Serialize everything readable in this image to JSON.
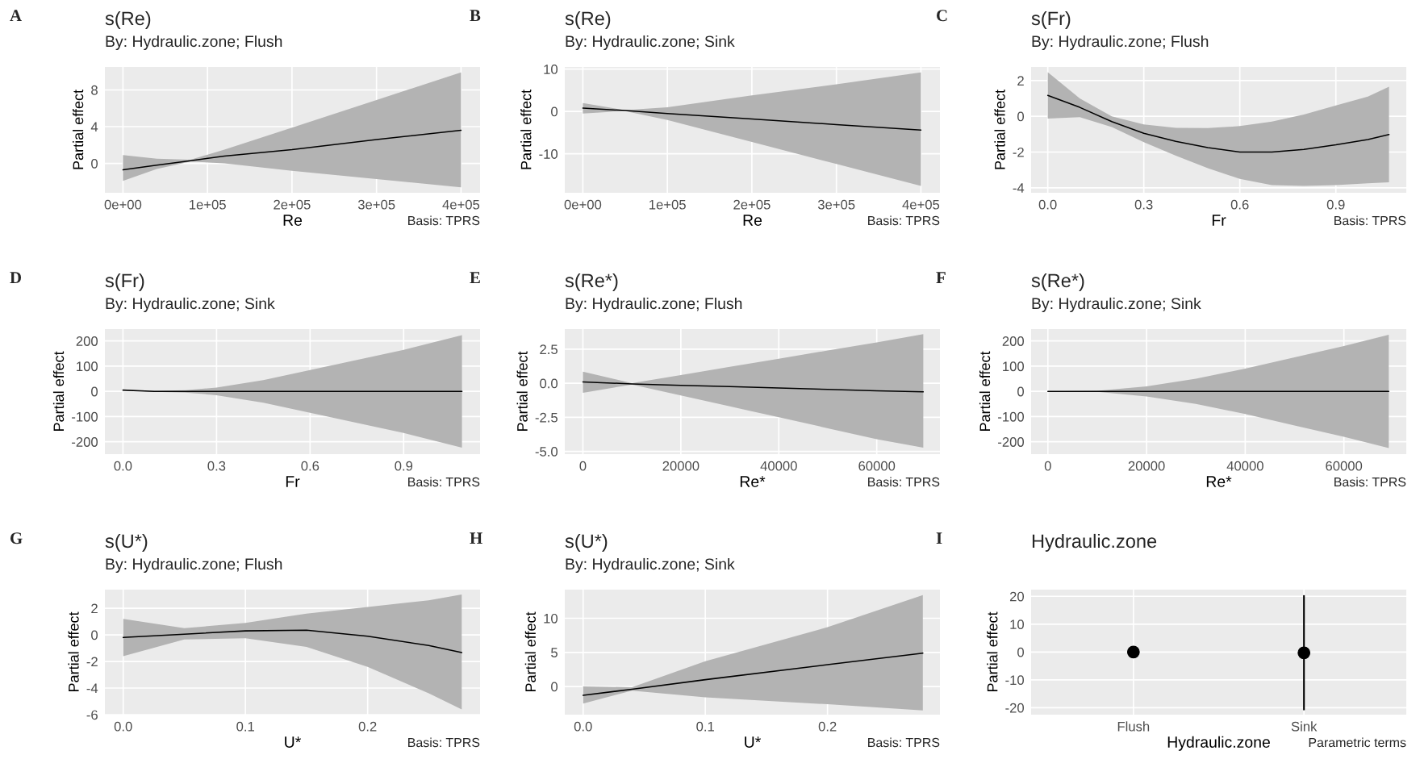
{
  "chart_data": [
    {
      "type": "line",
      "title": "s(Re)",
      "subtitle": "By: Hydraulic.zone; Flush",
      "xlabel": "Re",
      "ylabel": "Partial effect",
      "annotations": [
        "A",
        "Basis: TPRS"
      ],
      "grid": true,
      "x": [
        0,
        40000,
        80000,
        120000,
        200000,
        300000,
        400000
      ],
      "series": [
        {
          "color": "#000000",
          "values": [
            -0.7,
            -0.2,
            0.3,
            0.8,
            1.5,
            2.6,
            3.6
          ],
          "lower": [
            -1.9,
            -0.6,
            0.2,
            0.0,
            -0.8,
            -1.7,
            -2.6
          ],
          "upper": [
            0.9,
            0.5,
            0.4,
            1.5,
            3.9,
            6.9,
            9.9
          ]
        }
      ],
      "xlim": [
        -21400,
        422500
      ],
      "ylim": [
        -3.2,
        10.5
      ],
      "xticks": [
        {
          "value": 0,
          "label": "0e+00"
        },
        {
          "value": 100000,
          "label": "1e+05"
        },
        {
          "value": 200000,
          "label": "2e+05"
        },
        {
          "value": 300000,
          "label": "3e+05"
        },
        {
          "value": 400000,
          "label": "4e+05"
        }
      ],
      "yticks": [
        0,
        4,
        8
      ]
    },
    {
      "type": "line",
      "title": "s(Re)",
      "subtitle": "By: Hydraulic.zone; Sink",
      "xlabel": "Re",
      "ylabel": "Partial effect",
      "annotations": [
        "B",
        "Basis: TPRS"
      ],
      "grid": true,
      "x": [
        0,
        50000,
        100000,
        200000,
        300000,
        400000
      ],
      "series": [
        {
          "color": "#000000",
          "values": [
            0.8,
            0.2,
            -0.5,
            -1.8,
            -3.1,
            -4.4
          ],
          "lower": [
            -0.5,
            0.1,
            -2.0,
            -7.2,
            -12.4,
            -17.6
          ],
          "upper": [
            2.0,
            0.3,
            1.0,
            3.8,
            6.4,
            9.2
          ]
        }
      ],
      "xlim": [
        -21400,
        422500
      ],
      "ylim": [
        -19.2,
        10.5
      ],
      "xticks": [
        {
          "value": 0,
          "label": "0e+00"
        },
        {
          "value": 100000,
          "label": "1e+05"
        },
        {
          "value": 200000,
          "label": "2e+05"
        },
        {
          "value": 300000,
          "label": "3e+05"
        },
        {
          "value": 400000,
          "label": "4e+05"
        }
      ],
      "yticks": [
        -10,
        0,
        10
      ]
    },
    {
      "type": "line",
      "title": "s(Fr)",
      "subtitle": "By: Hydraulic.zone; Flush",
      "xlabel": "Fr",
      "ylabel": "Partial effect",
      "annotations": [
        "C",
        "Basis: TPRS"
      ],
      "grid": true,
      "x": [
        0,
        0.1,
        0.2,
        0.3,
        0.4,
        0.5,
        0.6,
        0.7,
        0.8,
        0.9,
        1.0,
        1.066
      ],
      "series": [
        {
          "color": "#000000",
          "values": [
            1.17,
            0.5,
            -0.3,
            -0.95,
            -1.4,
            -1.75,
            -2.0,
            -2.0,
            -1.85,
            -1.6,
            -1.3,
            -1.02
          ],
          "lower": [
            -0.13,
            -0.05,
            -0.6,
            -1.45,
            -2.2,
            -2.9,
            -3.5,
            -3.85,
            -3.9,
            -3.85,
            -3.75,
            -3.69
          ],
          "upper": [
            2.47,
            1.0,
            0.0,
            -0.45,
            -0.65,
            -0.66,
            -0.55,
            -0.3,
            0.1,
            0.6,
            1.1,
            1.65
          ]
        }
      ],
      "xlim": [
        -0.052,
        1.12
      ],
      "ylim": [
        -4.28,
        2.76
      ],
      "xticks": [
        {
          "value": 0,
          "label": "0.0"
        },
        0.3,
        0.6,
        0.9
      ],
      "yticks": [
        -4,
        -2,
        0,
        2
      ]
    },
    {
      "type": "line",
      "title": "s(Fr)",
      "subtitle": "By: Hydraulic.zone; Sink",
      "xlabel": "Fr",
      "ylabel": "Partial effect",
      "annotations": [
        "D",
        "Basis: TPRS"
      ],
      "grid": true,
      "x": [
        0,
        0.1,
        0.2,
        0.3,
        0.45,
        0.6,
        0.75,
        0.9,
        1.087
      ],
      "series": [
        {
          "color": "#000000",
          "values": [
            5,
            0,
            0,
            0,
            0,
            0,
            0,
            0,
            0
          ],
          "lower": [
            5,
            -2,
            -5,
            -15,
            -45,
            -85,
            -125,
            -165,
            -223
          ],
          "upper": [
            5,
            2,
            5,
            15,
            45,
            85,
            125,
            165,
            223
          ]
        }
      ],
      "xlim": [
        -0.058,
        1.145
      ],
      "ylim": [
        -249,
        247
      ],
      "xticks": [
        {
          "value": 0,
          "label": "0.0"
        },
        0.3,
        0.6,
        0.9
      ],
      "yticks": [
        -200,
        -100,
        0,
        100,
        200
      ]
    },
    {
      "type": "line",
      "title": "s(Re*)",
      "subtitle": "By: Hydraulic.zone; Flush",
      "xlabel": "Re*",
      "ylabel": "Partial effect",
      "annotations": [
        "E",
        "Basis: TPRS"
      ],
      "grid": true,
      "x": [
        0,
        10000,
        20000,
        30000,
        40000,
        50000,
        60000,
        69500
      ],
      "series": [
        {
          "color": "#000000",
          "values": [
            0.1,
            -0.05,
            -0.15,
            -0.25,
            -0.35,
            -0.45,
            -0.55,
            -0.63
          ],
          "lower": [
            -0.7,
            -0.1,
            -0.9,
            -1.7,
            -2.5,
            -3.3,
            -4.1,
            -4.73
          ],
          "upper": [
            0.85,
            0.0,
            0.6,
            1.2,
            1.8,
            2.4,
            3.0,
            3.6
          ]
        }
      ],
      "xlim": [
        -3700,
        72900
      ],
      "ylim": [
        -5.2,
        3.97
      ],
      "xticks": [
        0,
        20000,
        40000,
        60000
      ],
      "yticks": [
        {
          "value": -5,
          "label": "-5.0"
        },
        -2.5,
        {
          "value": 0,
          "label": "0.0"
        },
        2.5
      ]
    },
    {
      "type": "line",
      "title": "s(Re*)",
      "subtitle": "By: Hydraulic.zone; Sink",
      "xlabel": "Re*",
      "ylabel": "Partial effect",
      "annotations": [
        "F",
        "Basis: TPRS"
      ],
      "grid": true,
      "x": [
        0,
        10000,
        20000,
        30000,
        40000,
        50000,
        60000,
        69100
      ],
      "series": [
        {
          "color": "#000000",
          "values": [
            0,
            0,
            0,
            0,
            0,
            0,
            0,
            0
          ],
          "lower": [
            0,
            -2,
            -20,
            -50,
            -90,
            -135,
            -180,
            -225
          ],
          "upper": [
            0,
            2,
            20,
            50,
            90,
            135,
            180,
            225
          ]
        }
      ],
      "xlim": [
        -3400,
        72650
      ],
      "ylim": [
        -249,
        247
      ],
      "xticks": [
        0,
        20000,
        40000,
        60000
      ],
      "yticks": [
        -200,
        -100,
        0,
        100,
        200
      ]
    },
    {
      "type": "line",
      "title": "s(U*)",
      "subtitle": "By: Hydraulic.zone; Flush",
      "xlabel": "U*",
      "ylabel": "Partial effect",
      "annotations": [
        "G",
        "Basis: TPRS"
      ],
      "grid": true,
      "x": [
        0,
        0.05,
        0.1,
        0.15,
        0.2,
        0.25,
        0.277
      ],
      "series": [
        {
          "color": "#000000",
          "values": [
            -0.2,
            0.05,
            0.3,
            0.35,
            -0.1,
            -0.8,
            -1.33
          ],
          "lower": [
            -1.6,
            -0.35,
            -0.25,
            -0.9,
            -2.4,
            -4.4,
            -5.6
          ],
          "upper": [
            1.2,
            0.5,
            0.9,
            1.6,
            2.1,
            2.6,
            3.04
          ]
        }
      ],
      "xlim": [
        -0.015,
        0.292
      ],
      "ylim": [
        -6,
        3.4
      ],
      "xticks": [
        {
          "value": 0,
          "label": "0.0"
        },
        0.1,
        0.2
      ],
      "yticks": [
        -6,
        -4,
        -2,
        0,
        2
      ]
    },
    {
      "type": "line",
      "title": "s(U*)",
      "subtitle": "By: Hydraulic.zone; Sink",
      "xlabel": "U*",
      "ylabel": "Partial effect",
      "annotations": [
        "H",
        "Basis: TPRS"
      ],
      "grid": true,
      "x": [
        0,
        0.04,
        0.1,
        0.2,
        0.278
      ],
      "series": [
        {
          "color": "#000000",
          "values": [
            -1.3,
            -0.4,
            1.0,
            3.2,
            4.9
          ],
          "lower": [
            -2.5,
            -0.6,
            -1.6,
            -2.6,
            -3.5
          ],
          "upper": [
            0.0,
            -0.1,
            3.7,
            8.7,
            13.4
          ]
        }
      ],
      "xlim": [
        -0.015,
        0.292
      ],
      "ylim": [
        -4.13,
        14.2
      ],
      "xticks": [
        {
          "value": 0,
          "label": "0.0"
        },
        0.1,
        0.2
      ],
      "yticks": [
        0,
        5,
        10
      ]
    },
    {
      "type": "scatter",
      "title": "Hydraulic.zone",
      "xlabel": "Hydraulic.zone",
      "ylabel": "Partial effect",
      "annotations": [
        "I",
        "Parametric terms"
      ],
      "grid": true,
      "marker": "circle",
      "categories": [
        "Flush",
        "Sink"
      ],
      "series": [
        {
          "color": "#000000",
          "values": [
            0,
            -0.3
          ],
          "errors": [
            null,
            [
              -20.9,
              20.4
            ]
          ]
        }
      ],
      "ylim": [
        -22.5,
        22.4
      ],
      "yticks": [
        -20,
        -10,
        0,
        10,
        20
      ]
    }
  ]
}
